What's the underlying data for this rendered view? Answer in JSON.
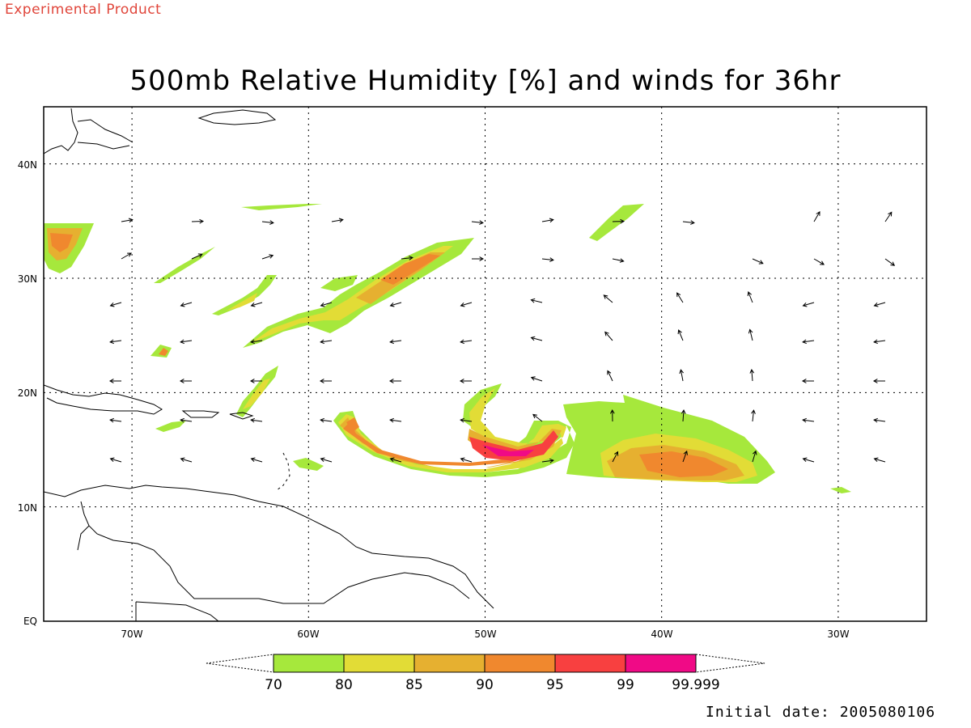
{
  "watermark": "Experimental Product",
  "title": "500mb Relative Humidity [%] and winds for 36hr",
  "initial_date": "Initial date: 2005080106",
  "map": {
    "projection": "lat-lon",
    "lon_range": [
      -75,
      -25
    ],
    "lat_range": [
      0,
      45
    ],
    "lon_ticks": [
      -70,
      -60,
      -50,
      -40,
      -30
    ],
    "lon_tick_labels": [
      "70W",
      "60W",
      "50W",
      "40W",
      "30W"
    ],
    "lat_ticks": [
      0,
      10,
      20,
      30,
      40
    ],
    "lat_tick_labels": [
      "EQ",
      "10N",
      "20N",
      "30N",
      "40N"
    ],
    "grid": "dotted"
  },
  "colorbar": {
    "labels": [
      "70",
      "80",
      "85",
      "90",
      "95",
      "99",
      "99.999"
    ],
    "colors": [
      "#a6e83c",
      "#e2dc36",
      "#e6b030",
      "#f0882e",
      "#f84040",
      "#f00a86"
    ]
  }
}
